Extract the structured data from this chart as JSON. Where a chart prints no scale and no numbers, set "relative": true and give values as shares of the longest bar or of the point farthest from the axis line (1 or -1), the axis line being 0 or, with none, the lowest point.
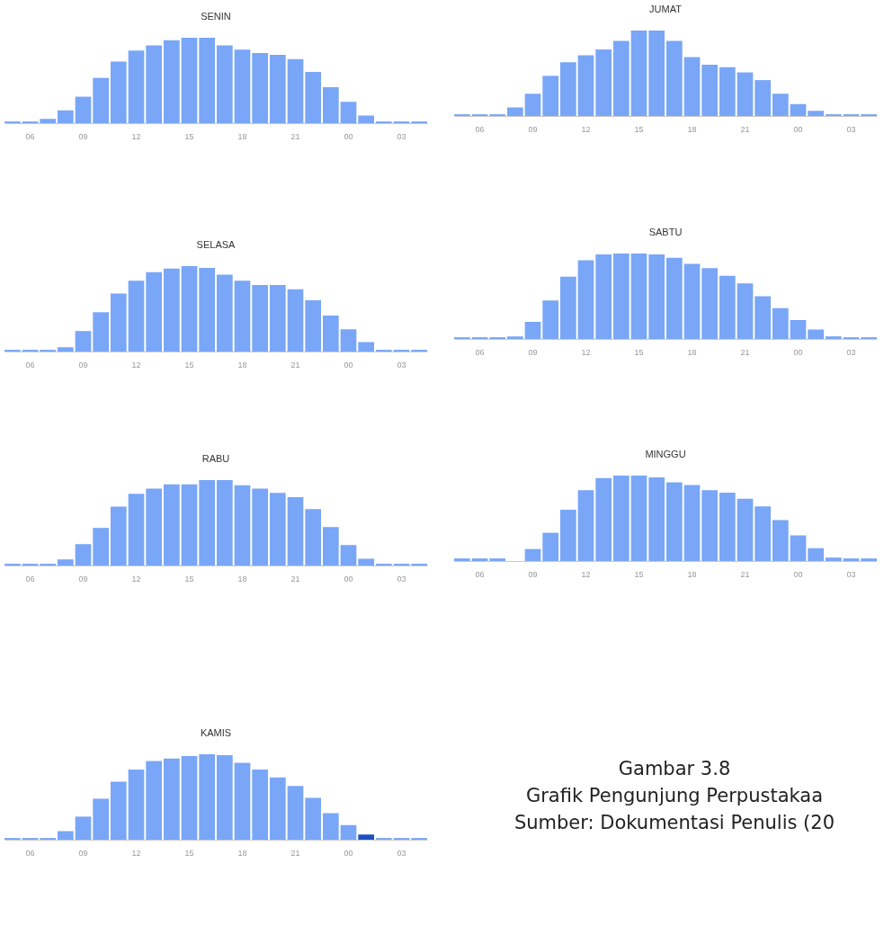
{
  "chart_data": [
    {
      "type": "bar",
      "title": "SENIN",
      "relative": true,
      "color": "#79a6f6",
      "categories": [
        null,
        "06",
        null,
        null,
        "09",
        null,
        null,
        "12",
        null,
        null,
        "15",
        null,
        null,
        "18",
        null,
        null,
        "21",
        null,
        null,
        "00",
        null,
        null,
        "03",
        null
      ],
      "values": [
        0.02,
        0.02,
        0.05,
        0.15,
        0.31,
        0.53,
        0.72,
        0.85,
        0.91,
        0.97,
        1,
        1,
        0.91,
        0.86,
        0.82,
        0.8,
        0.75,
        0.6,
        0.42,
        0.25,
        0.09,
        0.02,
        0.02,
        0.02
      ]
    },
    {
      "type": "bar",
      "title": "JUMAT",
      "relative": true,
      "color": "#79a6f6",
      "categories": [
        null,
        "06",
        null,
        null,
        "09",
        null,
        null,
        "12",
        null,
        null,
        "15",
        null,
        null,
        "18",
        null,
        null,
        "21",
        null,
        null,
        "00",
        null,
        null,
        "03",
        null
      ],
      "values": [
        0.02,
        0.02,
        0.02,
        0.1,
        0.26,
        0.47,
        0.63,
        0.71,
        0.78,
        0.88,
        1,
        1,
        0.88,
        0.69,
        0.6,
        0.57,
        0.51,
        0.42,
        0.26,
        0.14,
        0.06,
        0.02,
        0.02,
        0.02
      ]
    },
    {
      "type": "bar",
      "title": "SELASA",
      "relative": true,
      "color": "#79a6f6",
      "categories": [
        null,
        "06",
        null,
        null,
        "09",
        null,
        null,
        "12",
        null,
        null,
        "15",
        null,
        null,
        "18",
        null,
        null,
        "21",
        null,
        null,
        "00",
        null,
        null,
        "03",
        null
      ],
      "values": [
        0.02,
        0.02,
        0.02,
        0.05,
        0.24,
        0.46,
        0.68,
        0.83,
        0.93,
        0.97,
        1,
        0.98,
        0.9,
        0.83,
        0.78,
        0.78,
        0.73,
        0.6,
        0.42,
        0.26,
        0.11,
        0.02,
        0.02,
        0.02
      ]
    },
    {
      "type": "bar",
      "title": "SABTU",
      "relative": true,
      "color": "#79a6f6",
      "categories": [
        null,
        "06",
        null,
        null,
        "09",
        null,
        null,
        "12",
        null,
        null,
        "15",
        null,
        null,
        "18",
        null,
        null,
        "21",
        null,
        null,
        "00",
        null,
        null,
        "03",
        null
      ],
      "values": [
        0.02,
        0.02,
        0.02,
        0.03,
        0.2,
        0.45,
        0.73,
        0.92,
        0.99,
        1,
        1,
        0.99,
        0.95,
        0.88,
        0.83,
        0.74,
        0.65,
        0.5,
        0.36,
        0.22,
        0.11,
        0.03,
        0.02,
        0.02
      ]
    },
    {
      "type": "bar",
      "title": "RABU",
      "relative": true,
      "color": "#79a6f6",
      "categories": [
        null,
        "06",
        null,
        null,
        "09",
        null,
        null,
        "12",
        null,
        null,
        "15",
        null,
        null,
        "18",
        null,
        null,
        "21",
        null,
        null,
        "00",
        null,
        null,
        "03",
        null
      ],
      "values": [
        0.02,
        0.02,
        0.02,
        0.07,
        0.25,
        0.44,
        0.69,
        0.84,
        0.9,
        0.95,
        0.95,
        1,
        1,
        0.94,
        0.9,
        0.85,
        0.8,
        0.66,
        0.45,
        0.24,
        0.08,
        0.02,
        0.02,
        0.02
      ]
    },
    {
      "type": "bar",
      "title": "MINGGU",
      "relative": true,
      "color": "#79a6f6",
      "categories": [
        null,
        "06",
        null,
        null,
        "09",
        null,
        null,
        "12",
        null,
        null,
        "15",
        null,
        null,
        "18",
        null,
        null,
        "21",
        null,
        null,
        "00",
        null,
        null,
        "03",
        null
      ],
      "values": [
        0.03,
        0.03,
        0.03,
        0,
        0.14,
        0.33,
        0.6,
        0.83,
        0.97,
        1,
        1,
        0.98,
        0.92,
        0.89,
        0.83,
        0.8,
        0.73,
        0.64,
        0.48,
        0.3,
        0.15,
        0.04,
        0.03,
        0.03
      ]
    },
    {
      "type": "bar",
      "title": "KAMIS",
      "relative": true,
      "categories": [
        null,
        "06",
        null,
        null,
        "09",
        null,
        null,
        "12",
        null,
        null,
        "15",
        null,
        null,
        "18",
        null,
        null,
        "21",
        null,
        null,
        "00",
        null,
        null,
        "03",
        null
      ],
      "colors": [
        "#79a6f6",
        "#79a6f6",
        "#79a6f6",
        "#79a6f6",
        "#79a6f6",
        "#79a6f6",
        "#79a6f6",
        "#79a6f6",
        "#79a6f6",
        "#79a6f6",
        "#79a6f6",
        "#79a6f6",
        "#79a6f6",
        "#79a6f6",
        "#79a6f6",
        "#79a6f6",
        "#79a6f6",
        "#79a6f6",
        "#79a6f6",
        "#79a6f6",
        "#1d4fc0",
        "#79a6f6",
        "#79a6f6",
        "#79a6f6"
      ],
      "values": [
        0.02,
        0.02,
        0.02,
        0.1,
        0.27,
        0.48,
        0.68,
        0.82,
        0.92,
        0.95,
        0.98,
        1,
        0.99,
        0.9,
        0.82,
        0.73,
        0.63,
        0.49,
        0.31,
        0.17,
        0.06,
        0.02,
        0.02,
        0.02
      ]
    },
    {
      "type": "other",
      "annotations": [
        "Gambar 3.8",
        "Grafik Pengunjung Perpustakaa",
        "Sumber: Dokumentasi Penulis (20"
      ]
    }
  ]
}
